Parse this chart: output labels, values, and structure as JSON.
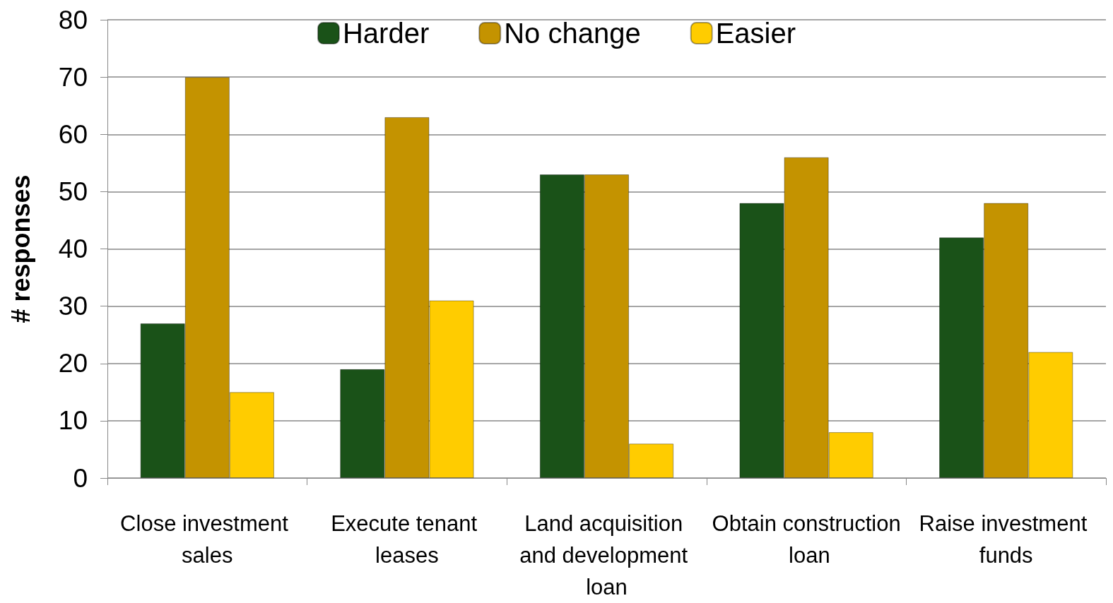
{
  "chart_data": {
    "type": "bar",
    "ylabel": "# responses",
    "categories": [
      "Close investment sales",
      "Execute tenant leases",
      "Land acquisition and development loan",
      "Obtain construction loan",
      "Raise investment funds"
    ],
    "series": [
      {
        "name": "Harder",
        "color": "#1a5218",
        "values": [
          27,
          19,
          53,
          48,
          42
        ]
      },
      {
        "name": "No change",
        "color": "#c49300",
        "values": [
          70,
          63,
          53,
          56,
          48
        ]
      },
      {
        "name": "Easier",
        "color": "#ffcc00",
        "values": [
          15,
          31,
          6,
          8,
          22
        ]
      }
    ],
    "ylim": [
      0,
      80
    ],
    "yticks": [
      0,
      10,
      20,
      30,
      40,
      50,
      60,
      70,
      80
    ],
    "grid": "y",
    "legend": "top"
  }
}
